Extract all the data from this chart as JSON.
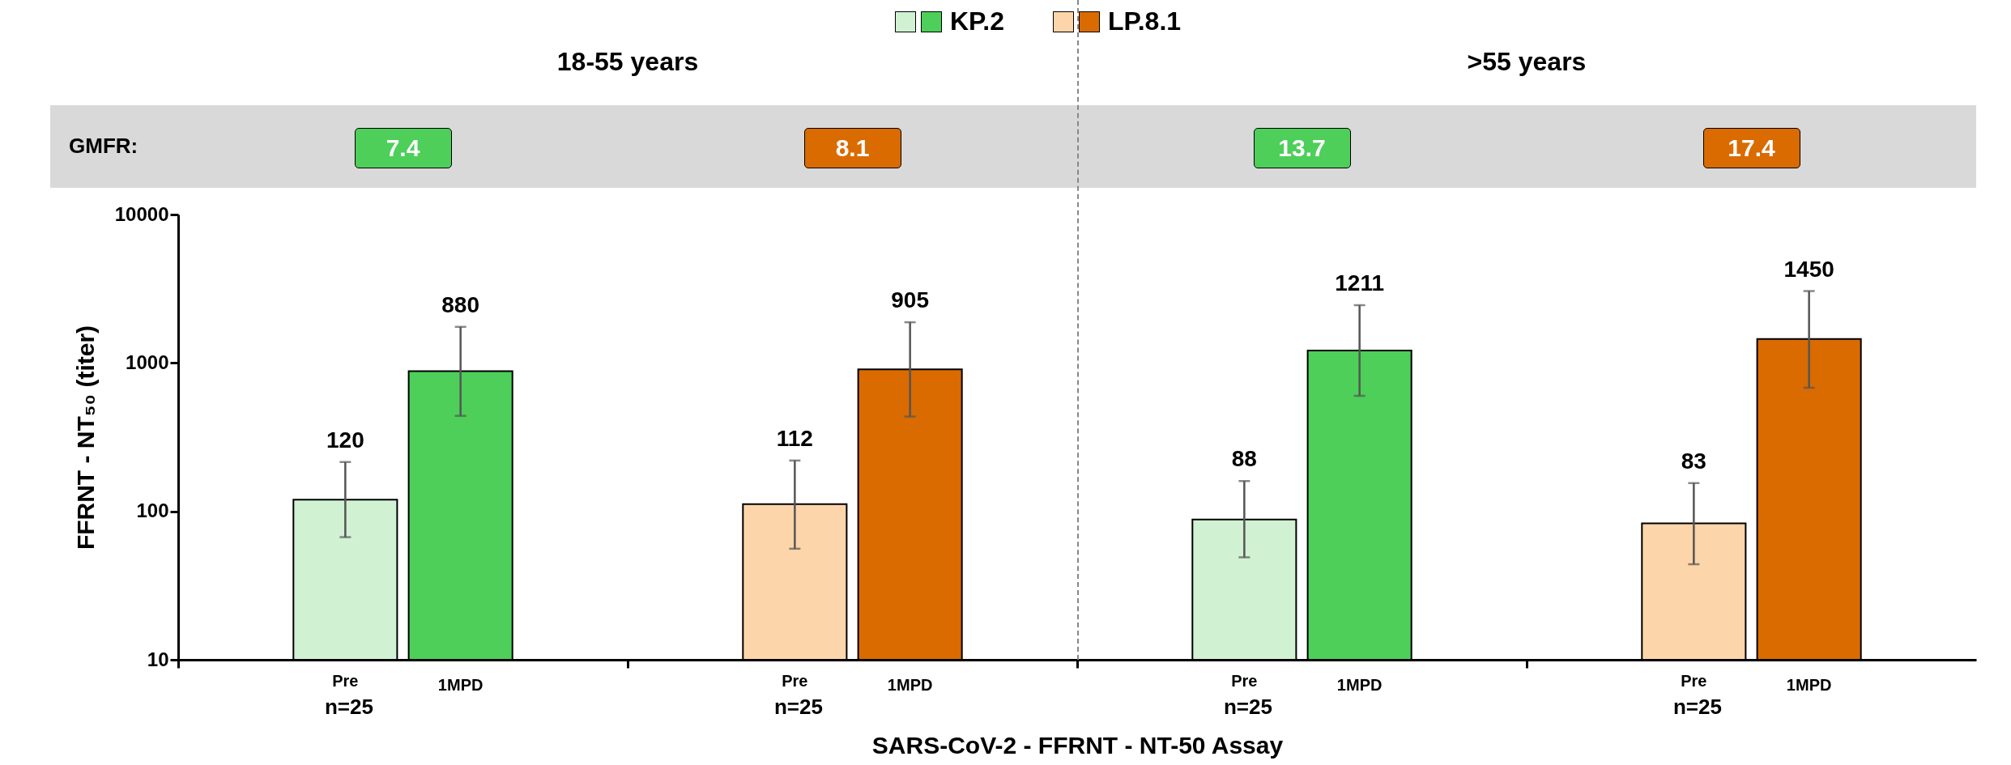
{
  "chart_data": {
    "type": "bar",
    "categories": [
      "Pre",
      "1MPD",
      "Pre",
      "1MPD",
      "Pre",
      "1MPD",
      "Pre",
      "1MPD"
    ],
    "series": [
      {
        "name": "KP.2",
        "colors": [
          "#d1f1d3",
          "#4dcf5a",
          null,
          null,
          "#d1f1d3",
          "#4dcf5a",
          null,
          null
        ],
        "values": [
          120,
          880,
          null,
          null,
          88,
          1211,
          null,
          null
        ],
        "errors": [
          [
            67,
            215
          ],
          [
            440,
            1750
          ],
          null,
          null,
          [
            49,
            160
          ],
          [
            600,
            2450
          ],
          null,
          null
        ]
      },
      {
        "name": "LP.8.1",
        "colors": [
          null,
          null,
          "#fdd5aa",
          "#d96b00",
          null,
          null,
          "#fdd5aa",
          "#d96b00"
        ],
        "values": [
          null,
          null,
          112,
          905,
          null,
          null,
          83,
          1450
        ],
        "errors": [
          null,
          null,
          [
            56,
            220
          ],
          [
            435,
            1880
          ],
          null,
          null,
          [
            44,
            155
          ],
          [
            680,
            3050
          ]
        ]
      }
    ],
    "xlabel": "SARS-CoV-2 - FFRNT - NT-50 Assay",
    "ylabel": "FFRNT - NT₅₀ (titer)",
    "log": true,
    "ylim": [
      10,
      10000
    ],
    "yticks": [
      10,
      100,
      1000,
      10000
    ],
    "data_labels": true,
    "legend": "top",
    "annotations": [
      "18-55 years",
      ">55 years",
      "GMFR:",
      "7.4",
      "8.1",
      "13.7",
      "17.4",
      "n=25",
      "n=25",
      "n=25",
      "n=25"
    ]
  }
}
